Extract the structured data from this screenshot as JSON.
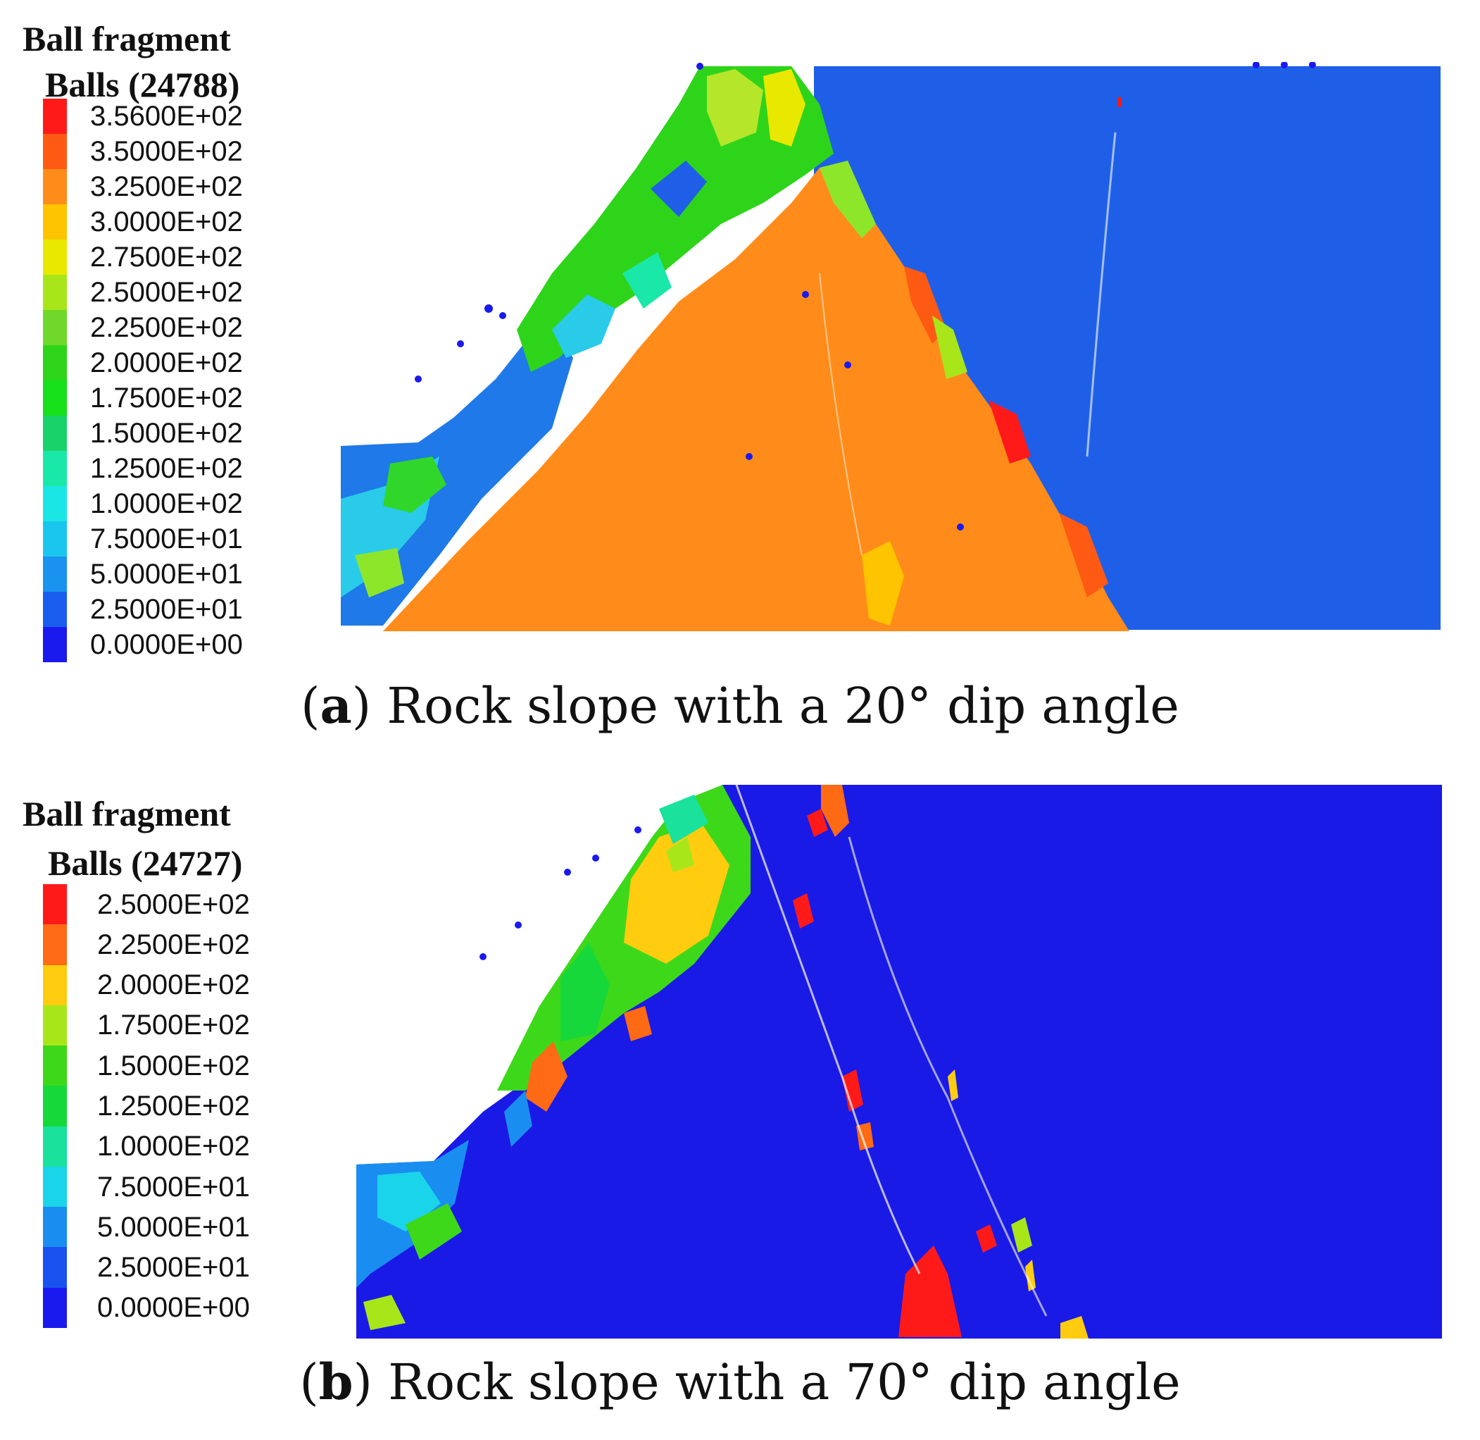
{
  "panels": [
    {
      "id": "a",
      "legend": {
        "title": "Ball fragment",
        "subtitle": "Balls (24788)",
        "labels": [
          "3.5600E+02",
          "3.5000E+02",
          "3.2500E+02",
          "3.0000E+02",
          "2.7500E+02",
          "2.5000E+02",
          "2.2500E+02",
          "2.0000E+02",
          "1.7500E+02",
          "1.5000E+02",
          "1.2500E+02",
          "1.0000E+02",
          "7.5000E+01",
          "5.0000E+01",
          "2.5000E+01",
          "0.0000E+00"
        ],
        "colors": [
          "#ff1a1a",
          "#ff5a14",
          "#ff8c1a",
          "#ffc400",
          "#e8e800",
          "#a8e61a",
          "#6fd82a",
          "#2ed41a",
          "#16e01a",
          "#1ad26a",
          "#1ae8a8",
          "#1ae6e6",
          "#1ac6ee",
          "#1a92f0",
          "#1a5ef0",
          "#1a1aee"
        ]
      },
      "simulation": {
        "background_color": "#1f5fe8",
        "dip_angle": "20°"
      },
      "caption": {
        "letter": "a",
        "text": "Rock slope with a 20° dip angle"
      }
    },
    {
      "id": "b",
      "legend": {
        "title": "Ball fragment",
        "subtitle": "Balls (24727)",
        "labels": [
          "2.5000E+02",
          "2.2500E+02",
          "2.0000E+02",
          "1.7500E+02",
          "1.5000E+02",
          "1.2500E+02",
          "1.0000E+02",
          "7.5000E+01",
          "5.0000E+01",
          "2.5000E+01",
          "0.0000E+00"
        ],
        "colors": [
          "#ff1a1a",
          "#ff6a14",
          "#ffcc10",
          "#a8e61a",
          "#3ed81a",
          "#16d83a",
          "#1ae29c",
          "#1ad4ea",
          "#1a8ef0",
          "#1a52f0",
          "#1a1aee"
        ]
      },
      "simulation": {
        "background_color": "#1a1ae6",
        "dip_angle": "70°"
      },
      "caption": {
        "letter": "b",
        "text": "Rock slope with a 70° dip angle"
      }
    }
  ]
}
